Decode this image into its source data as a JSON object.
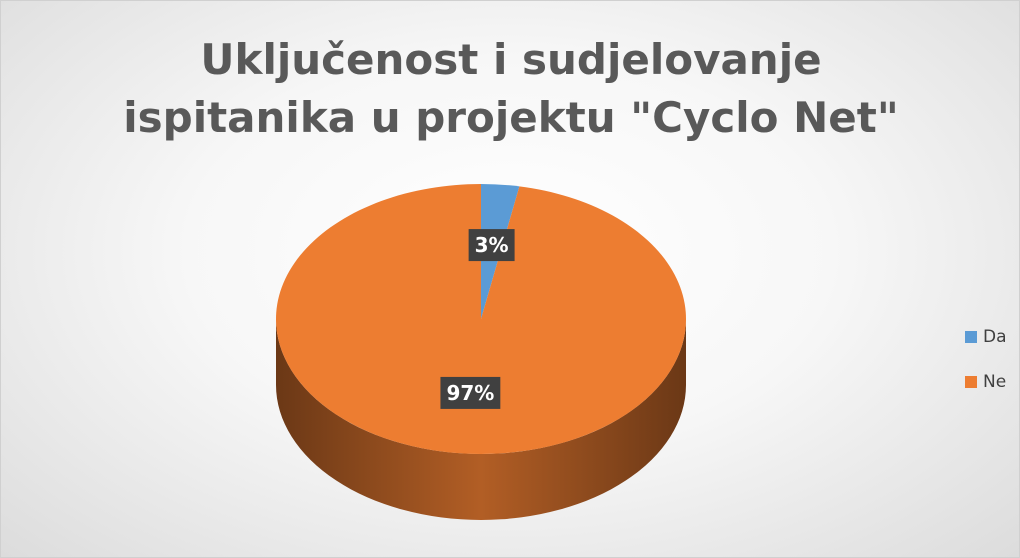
{
  "chart_data": {
    "type": "pie",
    "title": "Uključenost i sudjelovanje ispitanika u projektu \"Cyclo Net\"",
    "categories": [
      "Da",
      "Ne"
    ],
    "values": [
      3,
      97
    ],
    "value_labels": [
      "3%",
      "97%"
    ],
    "colors": [
      "#5b9bd5",
      "#ed7d31"
    ],
    "legend": "right"
  }
}
